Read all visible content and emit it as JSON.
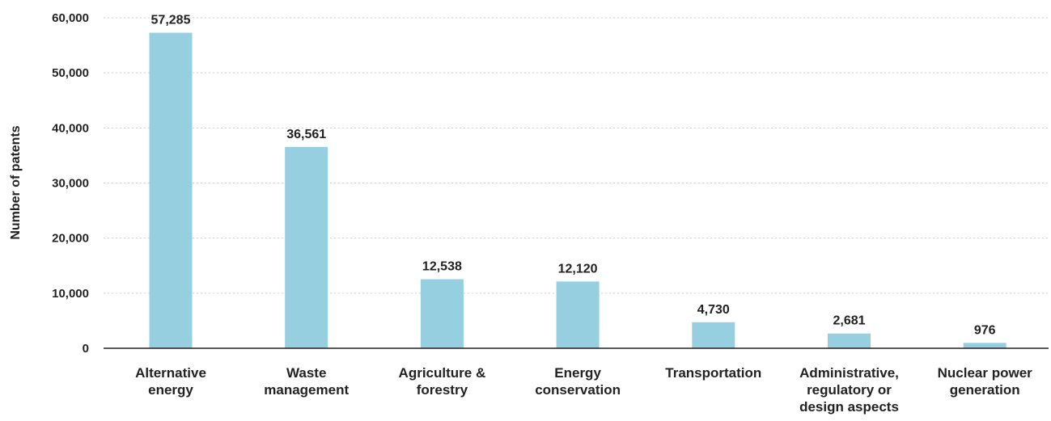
{
  "chart_data": {
    "type": "bar",
    "title": "",
    "xlabel": "",
    "ylabel": "Number of patents",
    "categories": [
      [
        "Alternative",
        "energy"
      ],
      [
        "Waste",
        "management"
      ],
      [
        "Agriculture &",
        "forestry"
      ],
      [
        "Energy",
        "conservation"
      ],
      [
        "Transportation"
      ],
      [
        "Administrative,",
        "regulatory or",
        "design aspects"
      ],
      [
        "Nuclear power",
        "generation"
      ]
    ],
    "values": [
      57285,
      36561,
      12538,
      12120,
      4730,
      2681,
      976
    ],
    "value_labels": [
      "57,285",
      "36,561",
      "12,538",
      "12,120",
      "4,730",
      "2,681",
      "976"
    ],
    "ylim": [
      0,
      60000
    ],
    "yticks": [
      0,
      10000,
      20000,
      30000,
      40000,
      50000,
      60000
    ],
    "ytick_labels": [
      "0",
      "10,000",
      "20,000",
      "30,000",
      "40,000",
      "50,000",
      "60,000"
    ],
    "grid": true,
    "legend": "none",
    "colors": {
      "bar": "#96cfe0"
    }
  }
}
